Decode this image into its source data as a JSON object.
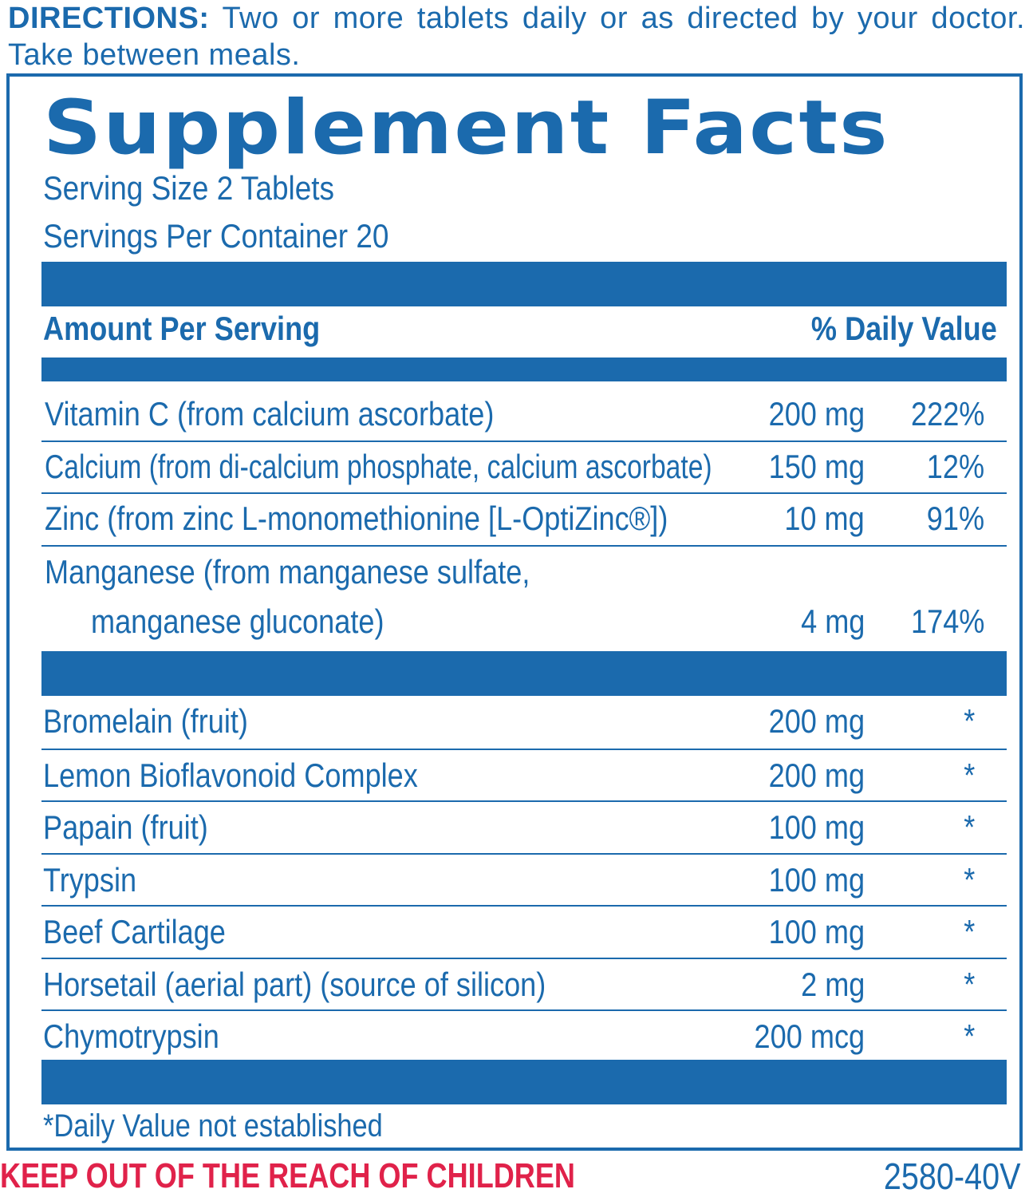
{
  "directions": {
    "label": "DIRECTIONS:",
    "text": "Two or more tablets daily or as directed by your doctor. Take between meals."
  },
  "panel": {
    "title": "Supplement Facts",
    "serving_size": "Serving Size 2 Tablets",
    "servings_per_container": "Servings Per Container 20",
    "header_left": "Amount Per Serving",
    "header_right": "% Daily Value",
    "group1": [
      {
        "name": "Vitamin C (from calcium ascorbate)",
        "amount": "200 mg",
        "dv": "222%"
      },
      {
        "name": "Calcium (from di-calcium phosphate, calcium ascorbate)",
        "amount": "150 mg",
        "dv": "12%"
      },
      {
        "name": "Zinc (from zinc L-monomethionine [L-OptiZinc®])",
        "amount": "10 mg",
        "dv": "91%"
      },
      {
        "name": "Manganese (from manganese sulfate,",
        "name_line2": "manganese gluconate)",
        "amount": "4 mg",
        "dv": "174%"
      }
    ],
    "group2": [
      {
        "name": "Bromelain (fruit)",
        "amount": "200 mg",
        "dv": "*"
      },
      {
        "name": "Lemon Bioflavonoid Complex",
        "amount": "200 mg",
        "dv": "*"
      },
      {
        "name": "Papain (fruit)",
        "amount": "100 mg",
        "dv": "*"
      },
      {
        "name": "Trypsin",
        "amount": "100 mg",
        "dv": "*"
      },
      {
        "name": "Beef Cartilage",
        "amount": "100 mg",
        "dv": "*"
      },
      {
        "name": "Horsetail (aerial part) (source of silicon)",
        "amount": "2 mg",
        "dv": "*"
      },
      {
        "name": "Chymotrypsin",
        "amount": "200 mcg",
        "dv": "*"
      }
    ],
    "footnote": "*Daily Value not established"
  },
  "warning": "KEEP OUT OF THE REACH OF CHILDREN",
  "product_code": "2580-40V",
  "colors": {
    "primary": "#1b6aad",
    "warning": "#e0224a"
  }
}
